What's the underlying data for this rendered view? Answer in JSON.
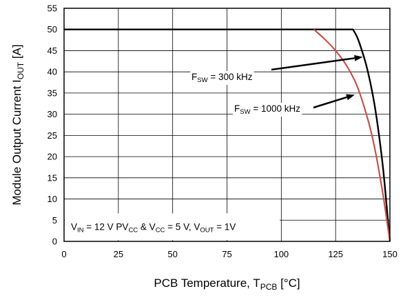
{
  "chart_data": {
    "type": "line",
    "xlabel": "PCB Temperature, T",
    "xlabel_sub": "PCB",
    "xlabel_suffix": " [°C]",
    "ylabel": "Module Output Current I",
    "ylabel_sub": "OUT",
    "ylabel_suffix": " [A]",
    "xlim": [
      0,
      150
    ],
    "ylim": [
      0,
      55
    ],
    "xticks": [
      0,
      25,
      50,
      75,
      100,
      125,
      150
    ],
    "yticks": [
      0,
      5,
      10,
      15,
      20,
      25,
      30,
      35,
      40,
      45,
      50,
      55
    ],
    "grid": true,
    "series": [
      {
        "name": "F_SW = 300 kHz",
        "color": "#000000",
        "x": [
          0,
          133,
          135,
          137,
          139,
          141,
          143,
          145,
          147,
          149,
          150
        ],
        "y": [
          50,
          50,
          48.1,
          45.2,
          41.8,
          37.4,
          32.0,
          25.0,
          16.5,
          5.5,
          0
        ]
      },
      {
        "name": "F_SW = 1000 kHz",
        "color": "#c8504a",
        "x": [
          115,
          120,
          125,
          130,
          135,
          140,
          143,
          145,
          147,
          149,
          150
        ],
        "y": [
          50,
          47.7,
          45.0,
          41.5,
          36.5,
          28.5,
          22.0,
          16.5,
          10.5,
          3.5,
          0
        ]
      }
    ],
    "annotations": [
      {
        "main": "F",
        "sub": "SW",
        "rest": " = 300 kHz",
        "arrow_to": [
          137.5,
          43.5
        ]
      },
      {
        "main": "F",
        "sub": "SW",
        "rest": " = 1000 kHz",
        "arrow_to": [
          133.8,
          34.6
        ]
      }
    ],
    "condition_label": {
      "p1": "V",
      "p1_sub": "IN",
      "p2": " = 12 V PV",
      "p2_sub": "CC",
      "p3": " & V",
      "p3_sub": "CC",
      "p4": " = 5 V, V",
      "p4_sub": "OUT",
      "p5": " = 1V"
    }
  }
}
